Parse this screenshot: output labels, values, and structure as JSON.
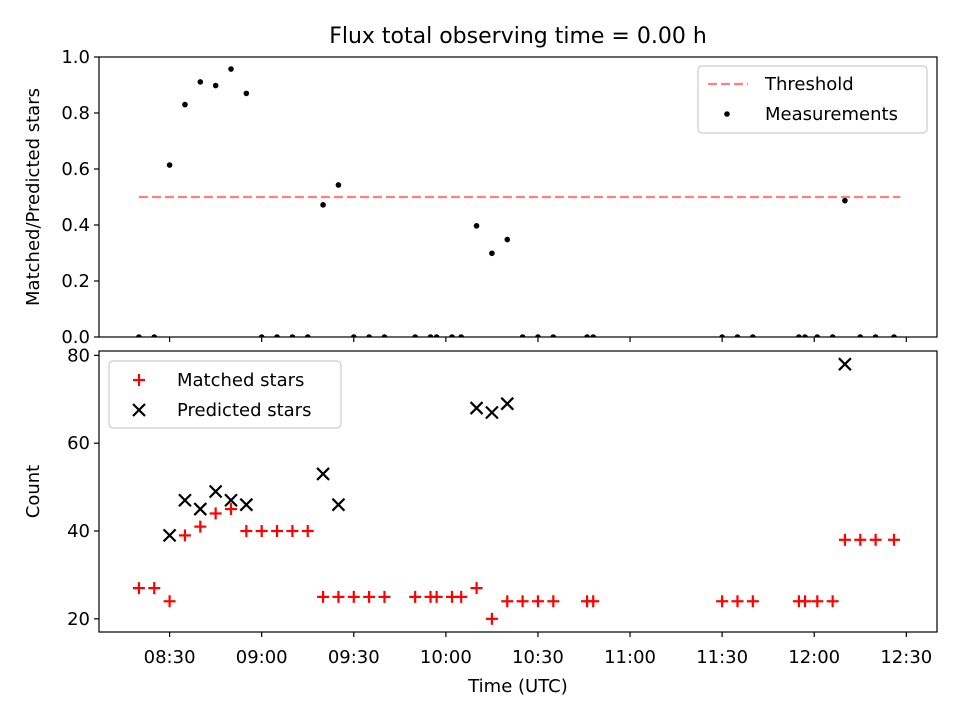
{
  "title": "Flux total observing time = 0.00 h",
  "chart_data": [
    {
      "type": "scatter",
      "ylabel": "Matched/Predicted stars",
      "xlim": [
        "08:07",
        "12:40"
      ],
      "ylim": [
        0,
        1.0
      ],
      "yticks": [
        "0.0",
        "0.2",
        "0.4",
        "0.6",
        "0.8",
        "1.0"
      ],
      "legend": {
        "placement": "top-right",
        "entries": [
          "Threshold",
          "Measurements"
        ]
      },
      "threshold": {
        "name": "Threshold",
        "y": 0.5,
        "x_range": [
          "08:20",
          "12:28"
        ],
        "color": "#ff7f7f"
      },
      "series": [
        {
          "name": "Measurements",
          "color": "#000000",
          "points": [
            [
              "08:20",
              0.0
            ],
            [
              "08:25",
              0.0
            ],
            [
              "08:30",
              0.614
            ],
            [
              "08:35",
              0.83
            ],
            [
              "08:40",
              0.911
            ],
            [
              "08:45",
              0.898
            ],
            [
              "08:50",
              0.957
            ],
            [
              "08:55",
              0.87
            ],
            [
              "09:00",
              0.0
            ],
            [
              "09:05",
              0.0
            ],
            [
              "09:10",
              0.0
            ],
            [
              "09:15",
              0.0
            ],
            [
              "09:20",
              0.472
            ],
            [
              "09:25",
              0.543
            ],
            [
              "09:30",
              0.0
            ],
            [
              "09:35",
              0.0
            ],
            [
              "09:40",
              0.0
            ],
            [
              "09:50",
              0.0
            ],
            [
              "09:55",
              0.0
            ],
            [
              "09:57",
              0.0
            ],
            [
              "10:02",
              0.0
            ],
            [
              "10:05",
              0.0
            ],
            [
              "10:10",
              0.397
            ],
            [
              "10:15",
              0.299
            ],
            [
              "10:20",
              0.348
            ],
            [
              "10:25",
              0.0
            ],
            [
              "10:30",
              0.0
            ],
            [
              "10:35",
              0.0
            ],
            [
              "10:46",
              0.0
            ],
            [
              "10:48",
              0.0
            ],
            [
              "11:30",
              0.0
            ],
            [
              "11:35",
              0.0
            ],
            [
              "11:40",
              0.0
            ],
            [
              "11:55",
              0.0
            ],
            [
              "11:57",
              0.0
            ],
            [
              "12:01",
              0.0
            ],
            [
              "12:06",
              0.0
            ],
            [
              "12:10",
              0.487
            ],
            [
              "12:15",
              0.0
            ],
            [
              "12:20",
              0.0
            ],
            [
              "12:26",
              0.0
            ]
          ]
        }
      ]
    },
    {
      "type": "scatter",
      "xlabel": "Time (UTC)",
      "ylabel": "Count",
      "xlim": [
        "08:07",
        "12:40"
      ],
      "ylim": [
        17,
        81
      ],
      "yticks": [
        "20",
        "40",
        "60",
        "80"
      ],
      "xticks": [
        "08:30",
        "09:00",
        "09:30",
        "10:00",
        "10:30",
        "11:00",
        "11:30",
        "12:00",
        "12:30"
      ],
      "legend": {
        "placement": "top-left",
        "entries": [
          "Matched stars",
          "Predicted stars"
        ]
      },
      "series": [
        {
          "name": "Matched stars",
          "marker": "+",
          "color": "#ff0000",
          "points": [
            [
              "08:20",
              27
            ],
            [
              "08:25",
              27
            ],
            [
              "08:30",
              24
            ],
            [
              "08:35",
              39
            ],
            [
              "08:40",
              41
            ],
            [
              "08:45",
              44
            ],
            [
              "08:50",
              45
            ],
            [
              "08:55",
              40
            ],
            [
              "09:00",
              40
            ],
            [
              "09:05",
              40
            ],
            [
              "09:10",
              40
            ],
            [
              "09:15",
              40
            ],
            [
              "09:20",
              25
            ],
            [
              "09:25",
              25
            ],
            [
              "09:30",
              25
            ],
            [
              "09:35",
              25
            ],
            [
              "09:40",
              25
            ],
            [
              "09:50",
              25
            ],
            [
              "09:55",
              25
            ],
            [
              "09:57",
              25
            ],
            [
              "10:02",
              25
            ],
            [
              "10:05",
              25
            ],
            [
              "10:10",
              27
            ],
            [
              "10:15",
              20
            ],
            [
              "10:20",
              24
            ],
            [
              "10:25",
              24
            ],
            [
              "10:30",
              24
            ],
            [
              "10:35",
              24
            ],
            [
              "10:46",
              24
            ],
            [
              "10:48",
              24
            ],
            [
              "11:30",
              24
            ],
            [
              "11:35",
              24
            ],
            [
              "11:40",
              24
            ],
            [
              "11:55",
              24
            ],
            [
              "11:57",
              24
            ],
            [
              "12:01",
              24
            ],
            [
              "12:06",
              24
            ],
            [
              "12:10",
              38
            ],
            [
              "12:15",
              38
            ],
            [
              "12:20",
              38
            ],
            [
              "12:26",
              38
            ]
          ]
        },
        {
          "name": "Predicted stars",
          "marker": "x",
          "color": "#000000",
          "points": [
            [
              "08:30",
              39
            ],
            [
              "08:35",
              47
            ],
            [
              "08:40",
              45
            ],
            [
              "08:45",
              49
            ],
            [
              "08:50",
              47
            ],
            [
              "08:55",
              46
            ],
            [
              "09:20",
              53
            ],
            [
              "09:25",
              46
            ],
            [
              "10:10",
              68
            ],
            [
              "10:15",
              67
            ],
            [
              "10:20",
              69
            ],
            [
              "12:10",
              78
            ]
          ]
        }
      ]
    }
  ]
}
